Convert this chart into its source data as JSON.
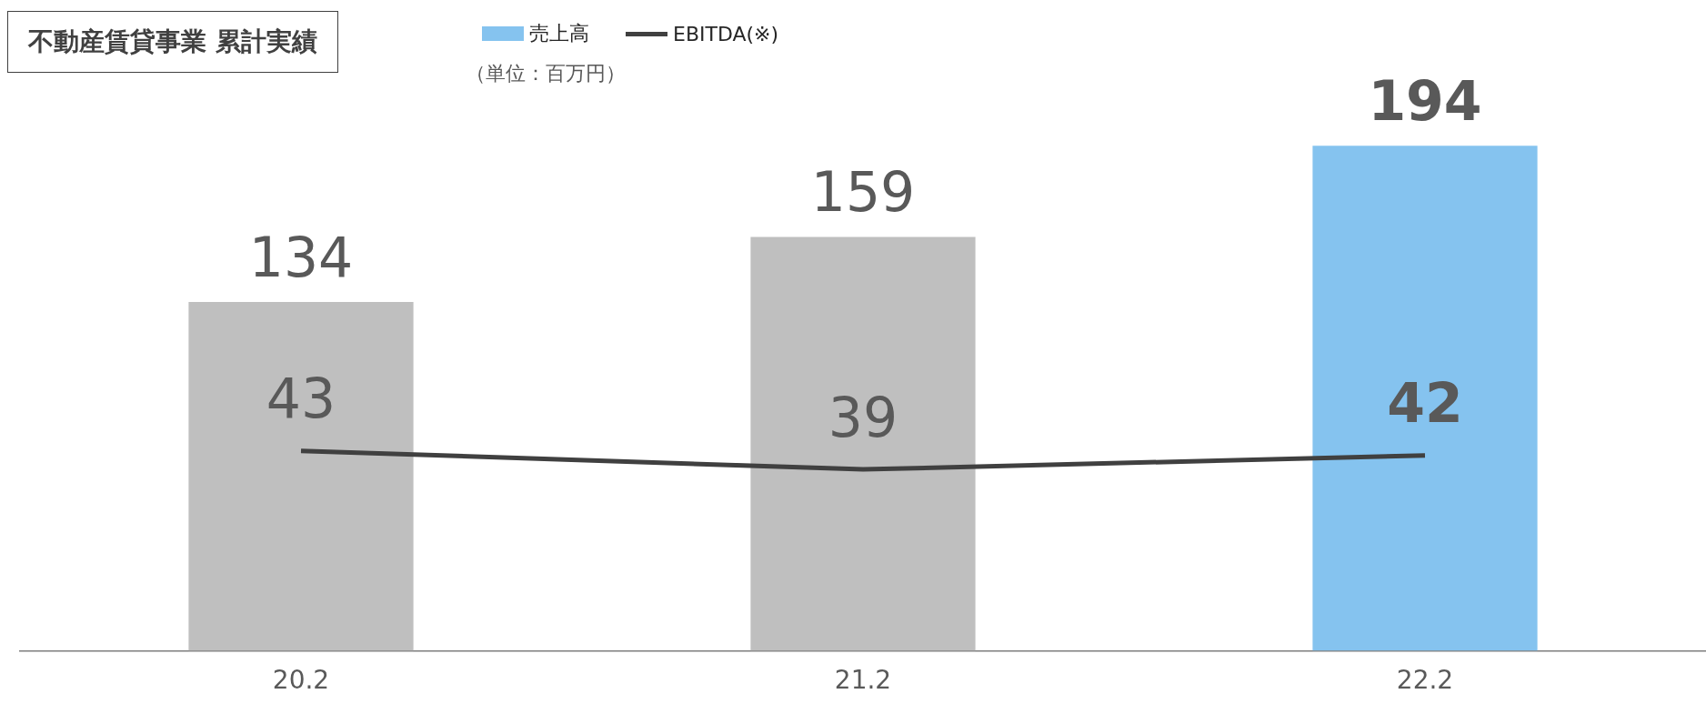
{
  "chart_data": {
    "type": "bar",
    "title": "不動産賃貸事業 累計実績",
    "annotations": [
      "（単位：百万円）"
    ],
    "categories": [
      "20.2",
      "21.2",
      "22.2"
    ],
    "series": [
      {
        "name": "売上高",
        "color": "#85c3ef",
        "colors": [
          "#bfbfbf",
          "#bfbfbf",
          "#85c3ef"
        ],
        "values": [
          134,
          159,
          194
        ]
      },
      {
        "name": "EBITDA(※)",
        "type": "line",
        "axis": "y2",
        "color": "#404040",
        "values": [
          43,
          39,
          42
        ]
      }
    ],
    "data_labels": true,
    "legend": "top",
    "tick_labels": "x",
    "grid": false
  }
}
